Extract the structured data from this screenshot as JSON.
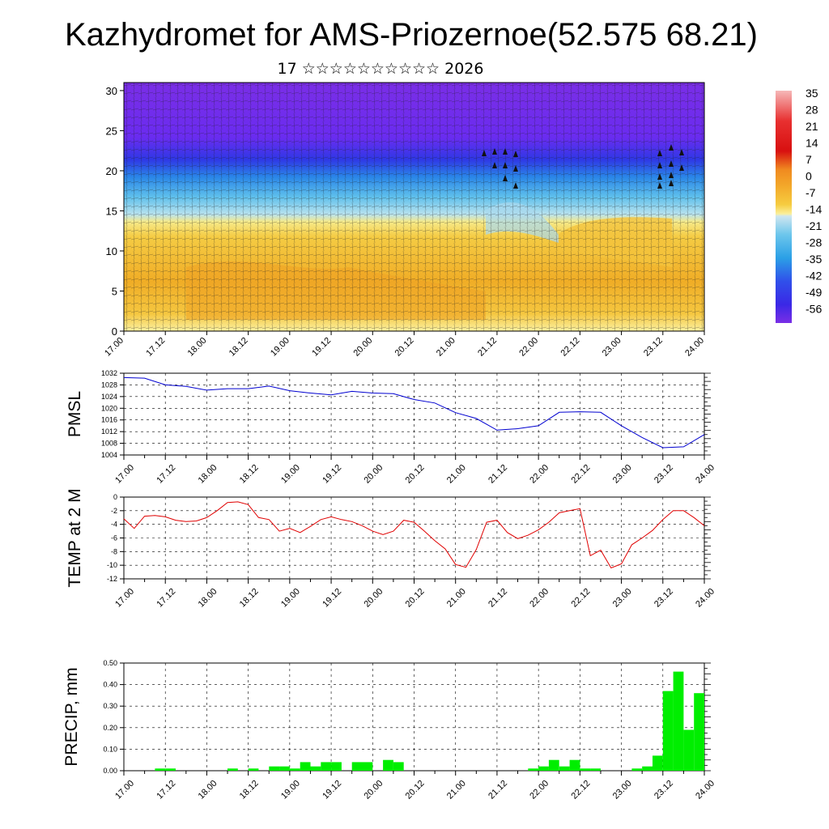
{
  "header": {
    "title": "Kazhydromet for AMS-Priozernoe(52.575 68.21)",
    "subtitle": "17 ☆☆☆☆☆☆☆☆☆☆ 2026"
  },
  "colors": {
    "temp_line": "#e00000",
    "pmsl_line": "#0000d0",
    "precip_bars": "#00ee00",
    "upper_air": "#7a2fe0",
    "lower_air": "#f2c23a"
  },
  "x_tick_labels": [
    "17.00",
    "17.12",
    "18.00",
    "18.12",
    "19.00",
    "19.12",
    "20.00",
    "20.12",
    "21.00",
    "21.12",
    "22.00",
    "22.12",
    "23.00",
    "23.12",
    "24.00"
  ],
  "chart_data": [
    {
      "type": "heatmap",
      "ylim": [
        0,
        31
      ],
      "y_ticks": [
        "0",
        "5",
        "10",
        "15",
        "20",
        "25",
        "30"
      ],
      "colorbar_labels": [
        "35",
        "28",
        "21",
        "14",
        "7",
        "0",
        "-7",
        "-14",
        "-21",
        "-28",
        "-35",
        "-42",
        "-49",
        "-56"
      ]
    },
    {
      "type": "line",
      "ylabel": "PMSL",
      "ylim": [
        1004,
        1032
      ],
      "y_ticks": [
        "1032",
        "1028",
        "1024",
        "1020",
        "1016",
        "1012",
        "1008",
        "1004"
      ],
      "x": [
        0,
        0.25,
        0.5,
        0.75,
        1,
        1.25,
        1.5,
        1.75,
        2,
        2.25,
        2.5,
        2.75,
        3,
        3.25,
        3.5,
        3.75,
        4,
        4.25,
        4.5,
        4.75,
        5,
        5.25,
        5.5,
        5.75,
        6,
        6.25,
        6.5,
        6.75,
        7
      ],
      "values": [
        1030.5,
        1030.3,
        1028.0,
        1027.5,
        1026.2,
        1026.7,
        1026.7,
        1027.6,
        1026.0,
        1025.2,
        1024.6,
        1025.8,
        1025.2,
        1025.0,
        1023.0,
        1021.8,
        1018.5,
        1016.5,
        1012.5,
        1013.0,
        1014.0,
        1018.6,
        1018.8,
        1018.6,
        1014.0,
        1010.0,
        1006.5,
        1006.8,
        1011.0
      ]
    },
    {
      "type": "line",
      "ylabel": "TEMP at 2 M",
      "ylim": [
        -12,
        0
      ],
      "y_ticks": [
        "0",
        "-2",
        "-4",
        "-6",
        "-8",
        "-10",
        "-12"
      ],
      "x": [
        0,
        0.125,
        0.25,
        0.375,
        0.5,
        0.625,
        0.75,
        0.875,
        1,
        1.125,
        1.25,
        1.375,
        1.5,
        1.625,
        1.75,
        1.875,
        2,
        2.125,
        2.25,
        2.375,
        2.5,
        2.625,
        2.75,
        2.875,
        3,
        3.125,
        3.25,
        3.375,
        3.5,
        3.625,
        3.75,
        3.875,
        4,
        4.125,
        4.25,
        4.375,
        4.5,
        4.625,
        4.75,
        4.875,
        5,
        5.125,
        5.25,
        5.375,
        5.5,
        5.625,
        5.75,
        5.875,
        6,
        6.125,
        6.25,
        6.375,
        6.5,
        6.625,
        6.75,
        6.875,
        7
      ],
      "values": [
        -3.2,
        -4.6,
        -2.8,
        -2.7,
        -2.9,
        -3.4,
        -3.6,
        -3.5,
        -3.0,
        -2.0,
        -0.8,
        -0.7,
        -1.1,
        -3.0,
        -3.3,
        -5.0,
        -4.6,
        -5.2,
        -4.3,
        -3.3,
        -2.9,
        -3.3,
        -3.6,
        -4.2,
        -5.0,
        -5.5,
        -5.0,
        -3.4,
        -3.7,
        -5.0,
        -6.4,
        -7.6,
        -9.9,
        -10.3,
        -7.7,
        -3.7,
        -3.4,
        -5.2,
        -6.1,
        -5.6,
        -4.8,
        -3.7,
        -2.3,
        -2.0,
        -1.7,
        -8.6,
        -7.8,
        -10.4,
        -9.8,
        -7.0,
        -6.0,
        -4.9,
        -3.3,
        -2.0,
        -2.0,
        -3.0,
        -4.2
      ]
    },
    {
      "type": "bar",
      "ylabel": "PRECIP, mm",
      "ylim": [
        0,
        0.5
      ],
      "y_ticks": [
        "0.50",
        "0.40",
        "0.30",
        "0.20",
        "0.10",
        "0.00"
      ],
      "bar_width": 0.125,
      "x": [
        0.375,
        0.5,
        1.25,
        1.5,
        1.75,
        1.875,
        2,
        2.125,
        2.25,
        2.375,
        2.5,
        2.75,
        2.875,
        3.125,
        3.25,
        4.875,
        5,
        5.125,
        5.25,
        5.375,
        5.5,
        5.625,
        6.125,
        6.25,
        6.375,
        6.5,
        6.625,
        6.75,
        6.875
      ],
      "values": [
        0.01,
        0.01,
        0.01,
        0.01,
        0.02,
        0.02,
        0.01,
        0.04,
        0.02,
        0.04,
        0.04,
        0.04,
        0.04,
        0.05,
        0.04,
        0.01,
        0.02,
        0.05,
        0.02,
        0.05,
        0.01,
        0.01,
        0.01,
        0.02,
        0.07,
        0.37,
        0.46,
        0.19,
        0.36
      ]
    }
  ]
}
